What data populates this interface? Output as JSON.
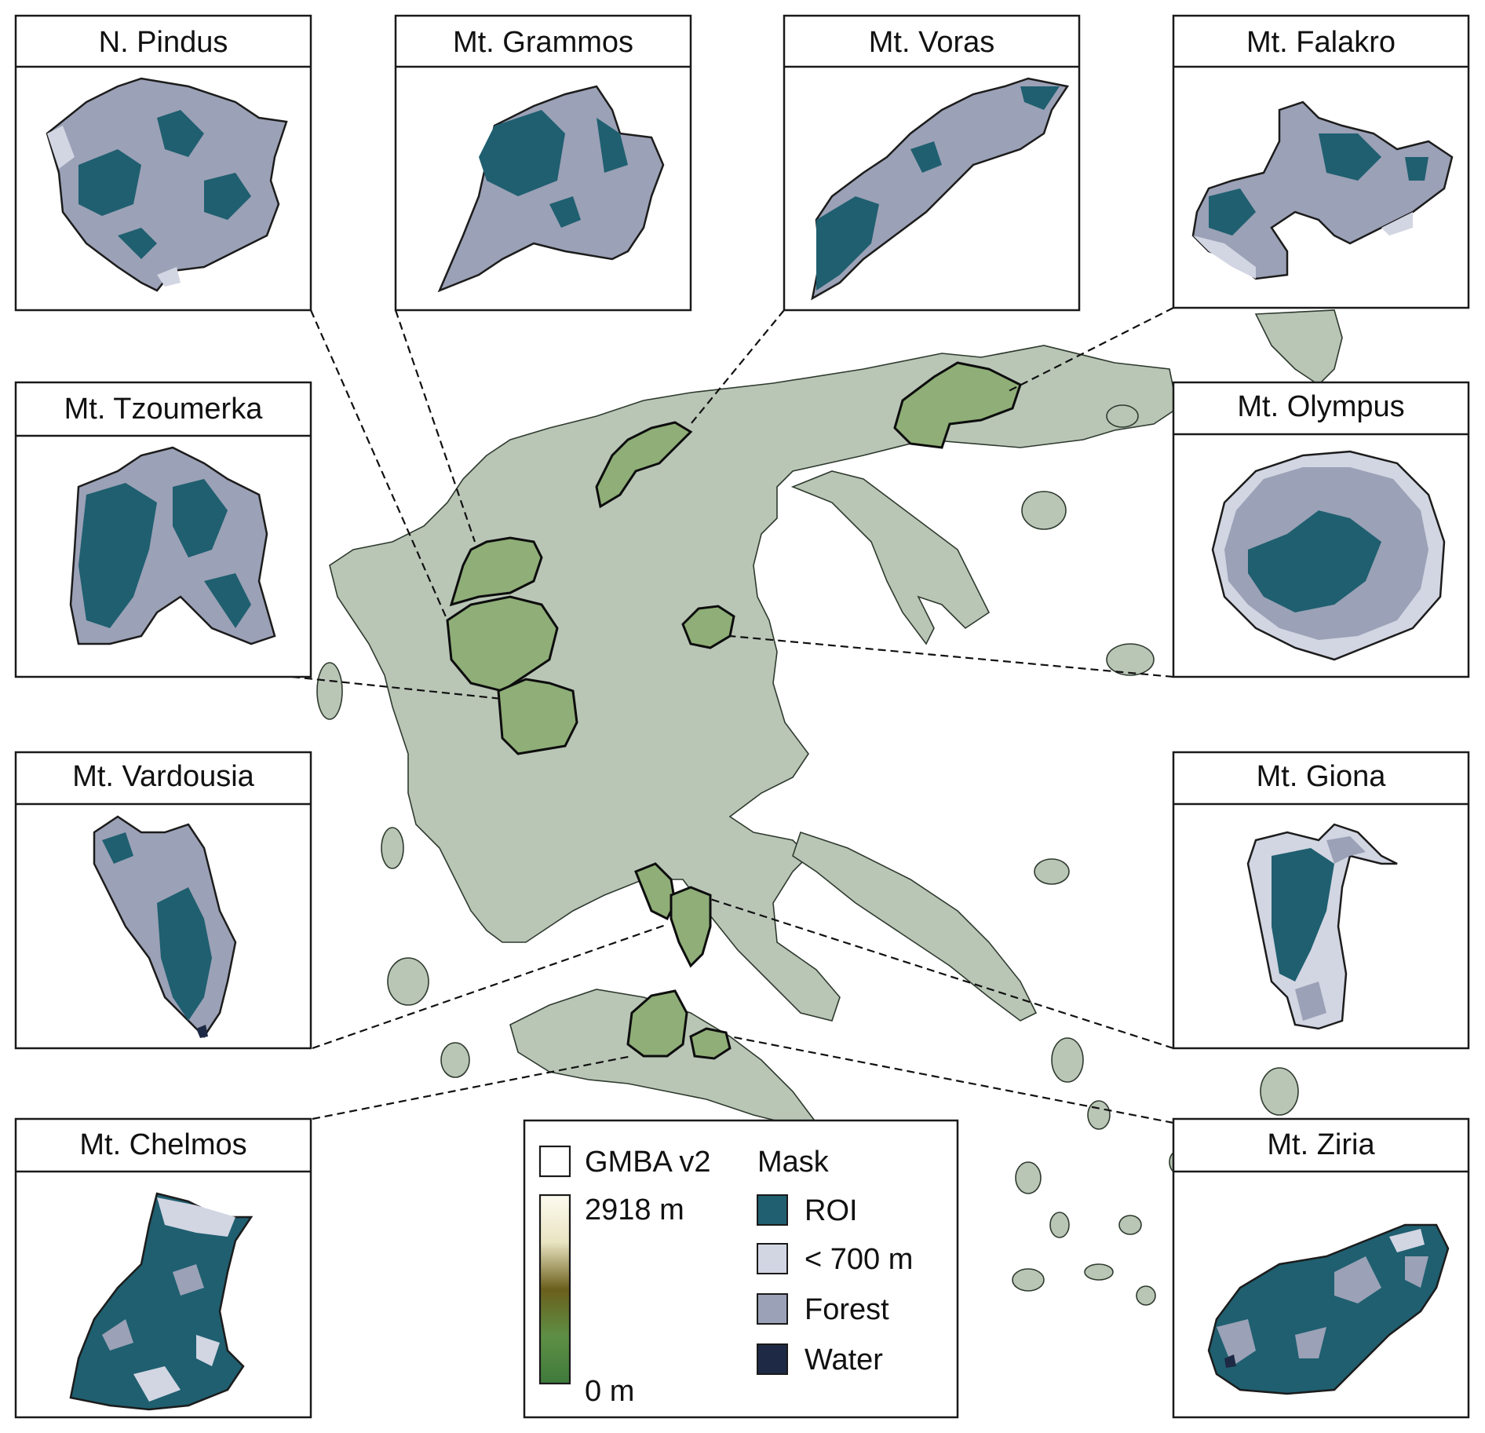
{
  "panels": [
    {
      "id": "n-pindus",
      "title": "N. Pindus"
    },
    {
      "id": "mt-grammos",
      "title": "Mt. Grammos"
    },
    {
      "id": "mt-voras",
      "title": "Mt. Voras"
    },
    {
      "id": "mt-falakro",
      "title": "Mt. Falakro"
    },
    {
      "id": "mt-tzoumerka",
      "title": "Mt. Tzoumerka"
    },
    {
      "id": "mt-olympus",
      "title": "Mt. Olympus"
    },
    {
      "id": "mt-vardousia",
      "title": "Mt. Vardousia"
    },
    {
      "id": "mt-giona",
      "title": "Mt. Giona"
    },
    {
      "id": "mt-chelmos",
      "title": "Mt. Chelmos"
    },
    {
      "id": "mt-ziria",
      "title": "Mt. Ziria"
    }
  ],
  "legend": {
    "gmba_label": "GMBA v2",
    "elevation_max_label": "2918 m",
    "elevation_min_label": "0 m",
    "elevation_colors": [
      "#fdfbf0",
      "#e9e4c2",
      "#6b5f1c",
      "#5e8f45",
      "#3f7a3c"
    ],
    "mask_title": "Mask",
    "mask_items": [
      {
        "label": "ROI",
        "color": "#1f5f70"
      },
      {
        "label": "< 700 m",
        "color": "#d2d5e2"
      },
      {
        "label": "Forest",
        "color": "#9ba1b6"
      },
      {
        "label": "Water",
        "color": "#1e2a45"
      }
    ]
  },
  "colors": {
    "land": "#b9c6b6",
    "gmba_region": "#8fae78",
    "roi": "#1f5f70",
    "below_700": "#d2d5e2",
    "forest": "#9ba1b6",
    "water": "#1e2a45"
  }
}
